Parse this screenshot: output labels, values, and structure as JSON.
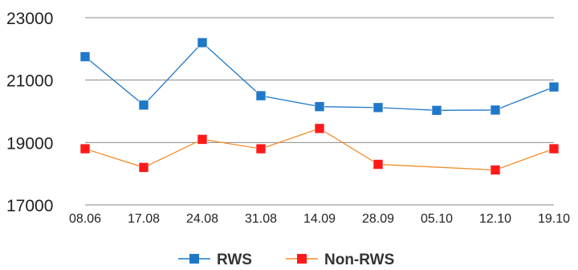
{
  "chart_data": {
    "type": "line",
    "categories": [
      "08.06",
      "17.08",
      "24.08",
      "31.08",
      "14.09",
      "28.09",
      "05.10",
      "12.10",
      "19.10"
    ],
    "series": [
      {
        "name": "RWS",
        "color": "#1F78C8",
        "marker": "square",
        "values": [
          21750,
          20200,
          22200,
          20500,
          20150,
          20120,
          20030,
          20040,
          20780
        ]
      },
      {
        "name": "Non-RWS",
        "color": "#FF1A1A",
        "line_color": "#F28C28",
        "marker": "square",
        "values": [
          18800,
          18200,
          19100,
          18800,
          19450,
          18300,
          null,
          18120,
          18800
        ]
      }
    ],
    "y_ticks": [
      "23000",
      "21000",
      "19000",
      "17000"
    ],
    "ylim": [
      17000,
      23000
    ],
    "grid": true,
    "legend_position": "bottom"
  }
}
